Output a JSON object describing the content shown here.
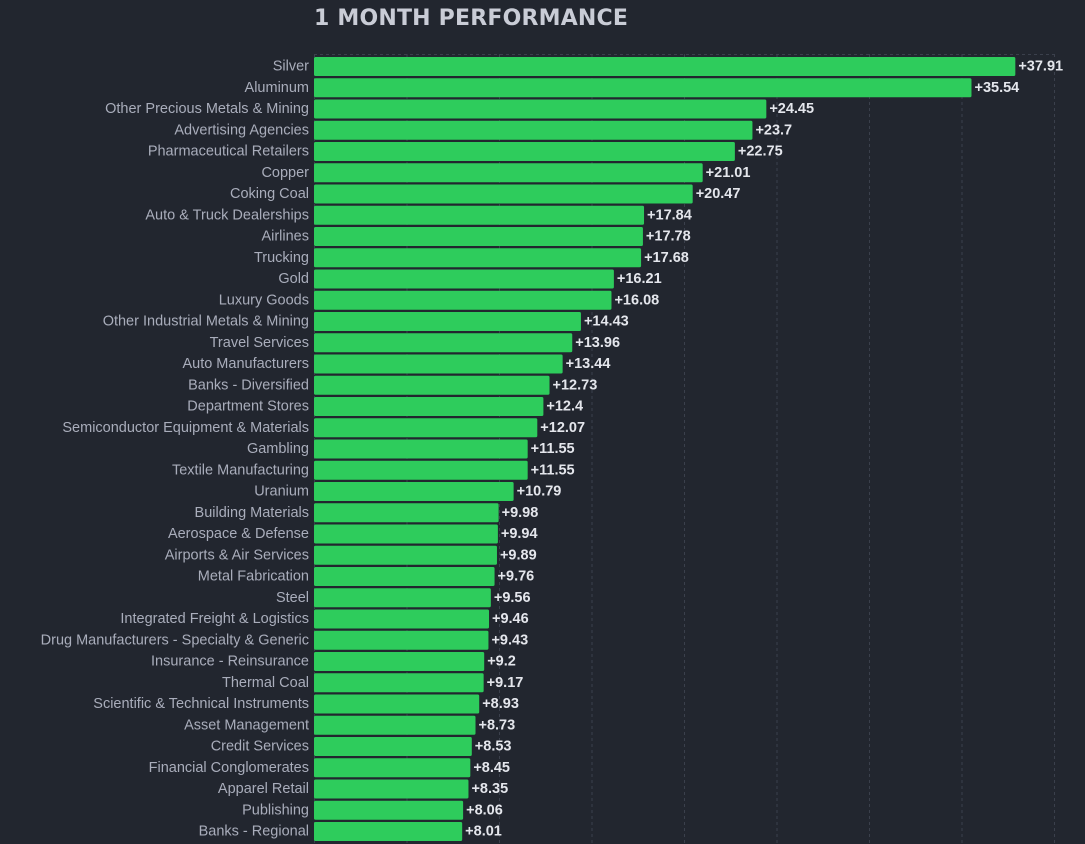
{
  "colors": {
    "background": "#22262f",
    "bar": "#2ecc5c",
    "title": "#c9ccd6"
  },
  "chart_data": {
    "type": "bar",
    "orientation": "horizontal",
    "title": "1 MONTH PERFORMANCE",
    "xlabel": "",
    "ylabel": "",
    "grid": true,
    "value_prefix": "+",
    "categories": [
      "Silver",
      "Aluminum",
      "Other Precious Metals & Mining",
      "Advertising Agencies",
      "Pharmaceutical Retailers",
      "Copper",
      "Coking Coal",
      "Auto & Truck Dealerships",
      "Airlines",
      "Trucking",
      "Gold",
      "Luxury Goods",
      "Other Industrial Metals & Mining",
      "Travel Services",
      "Auto Manufacturers",
      "Banks - Diversified",
      "Department Stores",
      "Semiconductor Equipment & Materials",
      "Gambling",
      "Textile Manufacturing",
      "Uranium",
      "Building Materials",
      "Aerospace & Defense",
      "Airports & Air Services",
      "Metal Fabrication",
      "Steel",
      "Integrated Freight & Logistics",
      "Drug Manufacturers - Specialty & Generic",
      "Insurance - Reinsurance",
      "Thermal Coal",
      "Scientific & Technical Instruments",
      "Asset Management",
      "Credit Services",
      "Financial Conglomerates",
      "Apparel Retail",
      "Publishing",
      "Banks - Regional"
    ],
    "values": [
      37.91,
      35.54,
      24.45,
      23.7,
      22.75,
      21.01,
      20.47,
      17.84,
      17.78,
      17.68,
      16.21,
      16.08,
      14.43,
      13.96,
      13.44,
      12.73,
      12.4,
      12.07,
      11.55,
      11.55,
      10.79,
      9.98,
      9.94,
      9.89,
      9.76,
      9.56,
      9.46,
      9.43,
      9.2,
      9.17,
      8.93,
      8.73,
      8.53,
      8.45,
      8.35,
      8.06,
      8.01
    ],
    "value_labels": [
      "+37.91",
      "+35.54",
      "+24.45",
      "+23.7",
      "+22.75",
      "+21.01",
      "+20.47",
      "+17.84",
      "+17.78",
      "+17.68",
      "+16.21",
      "+16.08",
      "+14.43",
      "+13.96",
      "+13.44",
      "+12.73",
      "+12.4",
      "+12.07",
      "+11.55",
      "+11.55",
      "+10.79",
      "+9.98",
      "+9.94",
      "+9.89",
      "+9.76",
      "+9.56",
      "+9.46",
      "+9.43",
      "+9.2",
      "+9.17",
      "+8.93",
      "+8.73",
      "+8.53",
      "+8.45",
      "+8.35",
      "+8.06",
      "+8.01"
    ],
    "xlim": [
      0,
      40
    ]
  }
}
